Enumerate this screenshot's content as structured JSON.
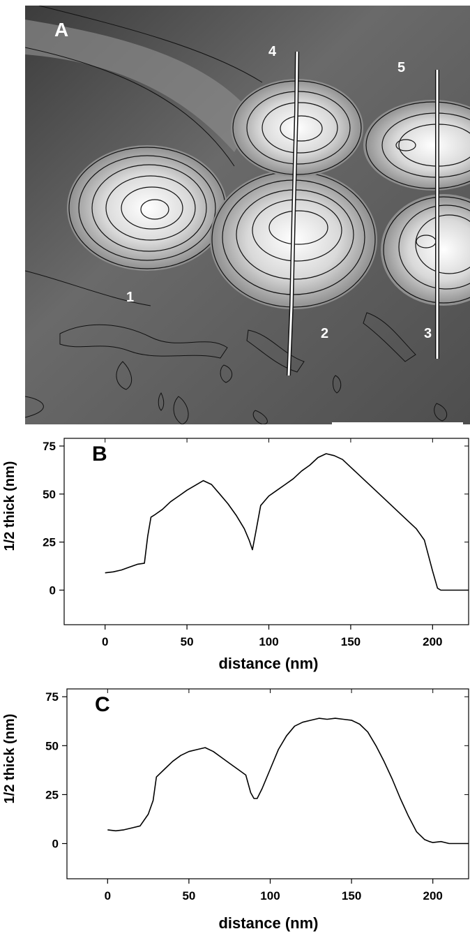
{
  "panel_a": {
    "letter": "A",
    "line_labels": [
      "4",
      "5",
      "1",
      "2",
      "3"
    ]
  },
  "chart_data": [
    {
      "type": "line",
      "panel": "B",
      "xlabel": "distance (nm)",
      "ylabel": "1/2 thick (nm)",
      "xlim": [
        -25,
        222
      ],
      "ylim": [
        -18,
        79
      ],
      "xticks": [
        "0",
        "50",
        "100",
        "150",
        "200"
      ],
      "yticks": [
        "0",
        "25",
        "50",
        "75"
      ],
      "grid": false,
      "x": [
        0,
        5,
        10,
        15,
        20,
        24,
        26,
        28,
        30,
        35,
        40,
        45,
        50,
        55,
        60,
        65,
        70,
        75,
        80,
        85,
        88,
        90,
        92,
        95,
        100,
        105,
        110,
        115,
        120,
        125,
        130,
        135,
        140,
        145,
        150,
        155,
        160,
        165,
        170,
        175,
        180,
        185,
        190,
        195,
        200,
        203,
        205,
        210,
        215,
        222
      ],
      "y": [
        9,
        9.5,
        10.5,
        12,
        13.5,
        14,
        28,
        38,
        39,
        42,
        46,
        49,
        52,
        54.5,
        57,
        55,
        50,
        45,
        39,
        32,
        26,
        21,
        30,
        44,
        49,
        52,
        55,
        58,
        62,
        65,
        69,
        71,
        70,
        68,
        64,
        60,
        56,
        52,
        48,
        44,
        40,
        36,
        32,
        26,
        10,
        1,
        0,
        0,
        0,
        0
      ]
    },
    {
      "type": "line",
      "panel": "C",
      "xlabel": "distance (nm)",
      "ylabel": "1/2 thick (nm)",
      "xlim": [
        -25,
        222
      ],
      "ylim": [
        -18,
        79
      ],
      "xticks": [
        "0",
        "50",
        "100",
        "150",
        "200"
      ],
      "yticks": [
        "0",
        "25",
        "50",
        "75"
      ],
      "grid": false,
      "x": [
        0,
        5,
        10,
        15,
        20,
        25,
        28,
        30,
        35,
        40,
        45,
        50,
        55,
        60,
        65,
        70,
        75,
        80,
        85,
        88,
        90,
        92,
        95,
        100,
        105,
        110,
        115,
        120,
        125,
        130,
        135,
        140,
        145,
        150,
        155,
        160,
        165,
        170,
        175,
        180,
        185,
        190,
        195,
        198,
        200,
        205,
        210,
        215,
        222
      ],
      "y": [
        7,
        6.5,
        7,
        8,
        9,
        15,
        22,
        34,
        38,
        42,
        45,
        47,
        48,
        49,
        47,
        44,
        41,
        38,
        35,
        26,
        23,
        23,
        28,
        38,
        48,
        55,
        60,
        62,
        63,
        64,
        63.5,
        64,
        63.5,
        63,
        61,
        57,
        50,
        42,
        33,
        23,
        14,
        6,
        2,
        1,
        0.5,
        1,
        0,
        0,
        0
      ]
    }
  ]
}
